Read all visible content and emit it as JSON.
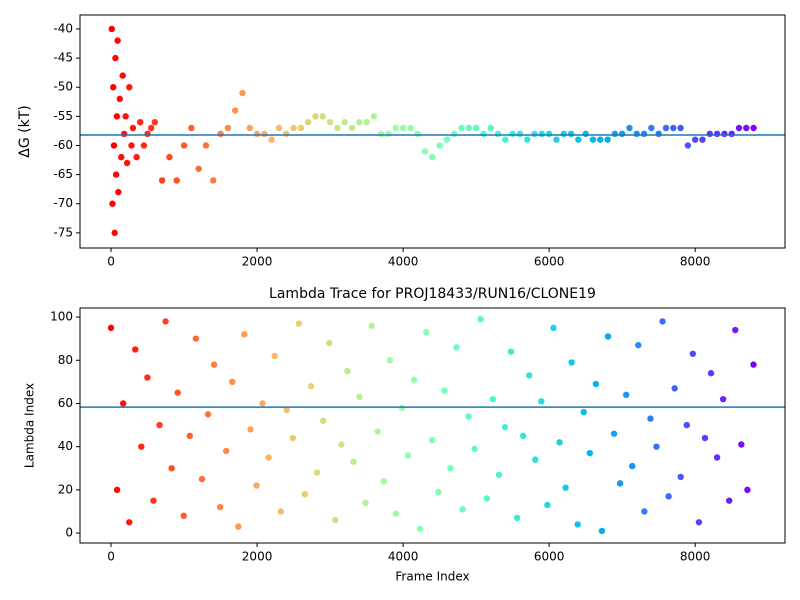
{
  "chart_data": [
    {
      "type": "scatter",
      "ylabel": "ΔG (kT)",
      "colormap": "rainbow_r",
      "hline": -58.2,
      "hline_color": "#1f77b4",
      "xlim": [
        -425,
        9230
      ],
      "ylim": [
        -77.6,
        -37.6
      ],
      "xticks": [
        0,
        2000,
        4000,
        6000,
        8000
      ],
      "yticks": [
        -75,
        -70,
        -65,
        -60,
        -55,
        -50,
        -45,
        -40
      ],
      "x": [
        10,
        20,
        30,
        40,
        50,
        60,
        70,
        80,
        90,
        100,
        120,
        140,
        160,
        180,
        200,
        220,
        250,
        280,
        300,
        350,
        400,
        450,
        500,
        550,
        600,
        700,
        800,
        900,
        1000,
        1100,
        1200,
        1300,
        1400,
        1500,
        1600,
        1700,
        1800,
        1900,
        2000,
        2100,
        2200,
        2300,
        2400,
        2500,
        2600,
        2700,
        2800,
        2900,
        3000,
        3100,
        3200,
        3300,
        3400,
        3500,
        3600,
        3700,
        3800,
        3900,
        4000,
        4100,
        4200,
        4300,
        4400,
        4500,
        4600,
        4700,
        4800,
        4900,
        5000,
        5100,
        5200,
        5300,
        5400,
        5500,
        5600,
        5700,
        5800,
        5900,
        6000,
        6100,
        6200,
        6300,
        6400,
        6500,
        6600,
        6700,
        6800,
        6900,
        7000,
        7100,
        7200,
        7300,
        7400,
        7500,
        7600,
        7700,
        7800,
        7900,
        8000,
        8100,
        8200,
        8300,
        8400,
        8500,
        8600,
        8700,
        8800
      ],
      "y": [
        -40,
        -70,
        -50,
        -60,
        -75,
        -45,
        -65,
        -55,
        -42,
        -68,
        -52,
        -62,
        -48,
        -58,
        -55,
        -63,
        -50,
        -60,
        -57,
        -62,
        -56,
        -60,
        -58,
        -57,
        -56,
        -66,
        -62,
        -66,
        -60,
        -57,
        -64,
        -60,
        -66,
        -58,
        -57,
        -54,
        -51,
        -57,
        -58,
        -58,
        -59,
        -57,
        -58,
        -57,
        -57,
        -56,
        -55,
        -55,
        -56,
        -57,
        -56,
        -57,
        -56,
        -56,
        -55,
        -58,
        -58,
        -57,
        -57,
        -57,
        -58,
        -61,
        -62,
        -60,
        -59,
        -58,
        -57,
        -57,
        -57,
        -58,
        -57,
        -58,
        -59,
        -58,
        -58,
        -59,
        -58,
        -58,
        -58,
        -59,
        -58,
        -58,
        -59,
        -58,
        -59,
        -59,
        -59,
        -58,
        -58,
        -57,
        -58,
        -58,
        -57,
        -58,
        -57,
        -57,
        -57,
        -60,
        -59,
        -59,
        -58,
        -58,
        -58,
        -58,
        -57,
        -57,
        -57
      ]
    },
    {
      "type": "scatter",
      "title": "Lambda Trace for PROJ18433/RUN16/CLONE19",
      "xlabel": "Frame Index",
      "ylabel": "Lambda Index",
      "colormap": "rainbow_r",
      "hline": 58.3,
      "hline_color": "#1f77b4",
      "xlim": [
        -425,
        9230
      ],
      "ylim": [
        -4.6,
        104.2
      ],
      "xticks": [
        0,
        2000,
        4000,
        6000,
        8000
      ],
      "yticks": [
        0,
        20,
        40,
        60,
        80,
        100
      ],
      "x": [
        0,
        83,
        166,
        249,
        332,
        415,
        498,
        581,
        664,
        747,
        830,
        913,
        996,
        1079,
        1162,
        1245,
        1328,
        1411,
        1494,
        1577,
        1660,
        1743,
        1826,
        1909,
        1992,
        2075,
        2158,
        2241,
        2324,
        2407,
        2490,
        2573,
        2656,
        2739,
        2822,
        2905,
        2988,
        3071,
        3154,
        3237,
        3320,
        3403,
        3486,
        3569,
        3652,
        3735,
        3818,
        3901,
        3984,
        4067,
        4150,
        4233,
        4316,
        4399,
        4482,
        4565,
        4648,
        4731,
        4814,
        4897,
        4980,
        5063,
        5146,
        5229,
        5312,
        5395,
        5478,
        5561,
        5644,
        5727,
        5810,
        5893,
        5976,
        6059,
        6142,
        6225,
        6308,
        6391,
        6474,
        6557,
        6640,
        6723,
        6806,
        6889,
        6972,
        7055,
        7138,
        7221,
        7304,
        7387,
        7470,
        7553,
        7636,
        7719,
        7802,
        7885,
        7968,
        8051,
        8134,
        8217,
        8300,
        8383,
        8466,
        8549,
        8632,
        8715,
        8798
      ],
      "y": [
        95,
        20,
        60,
        5,
        85,
        40,
        72,
        15,
        50,
        98,
        30,
        65,
        8,
        45,
        90,
        25,
        55,
        78,
        12,
        38,
        70,
        3,
        92,
        48,
        22,
        60,
        35,
        82,
        10,
        57,
        44,
        97,
        18,
        68,
        28,
        52,
        88,
        6,
        41,
        75,
        33,
        63,
        14,
        96,
        47,
        24,
        80,
        9,
        58,
        36,
        71,
        2,
        93,
        43,
        19,
        66,
        30,
        86,
        11,
        54,
        39,
        99,
        16,
        62,
        27,
        49,
        84,
        7,
        45,
        73,
        34,
        61,
        13,
        95,
        42,
        21,
        79,
        4,
        56,
        37,
        69,
        1,
        91,
        46,
        23,
        64,
        31,
        87,
        10,
        53,
        40,
        98,
        17,
        67,
        26,
        50,
        83,
        5,
        44,
        74,
        35,
        62,
        15,
        94,
        41,
        20,
        78
      ]
    }
  ]
}
